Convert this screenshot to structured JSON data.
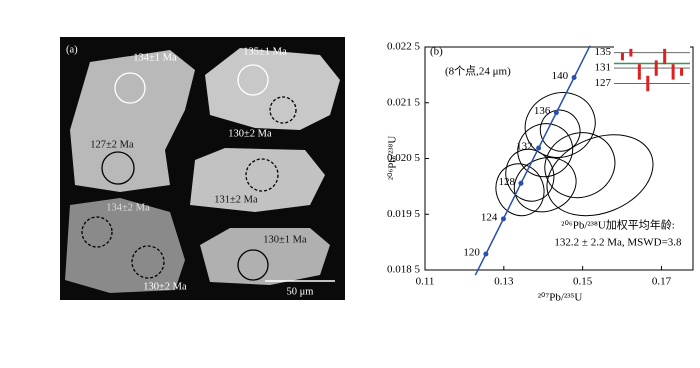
{
  "panel_a": {
    "label": "(a)",
    "ages": [
      "134±1 Ma",
      "135±1 Ma",
      "130±2 Ma",
      "127±2 Ma",
      "131±2 Ma",
      "134±2 Ma",
      "130±2 Ma",
      "130±1 Ma"
    ],
    "scale": "50 μm"
  },
  "chart_data": {
    "type": "concordia",
    "label": "(b)",
    "xlabel": "²⁰⁷Pb/²³⁵U",
    "ylabel": "²⁰⁶Pb/²³⁸U",
    "xlim": [
      0.11,
      0.178
    ],
    "ylim": [
      0.0185,
      0.0225
    ],
    "xticks": [
      0.11,
      0.13,
      0.15,
      0.17
    ],
    "yticks": [
      {
        "value": 0.0185,
        "label": "0.018 5"
      },
      {
        "value": 0.0195,
        "label": "0.019 5"
      },
      {
        "value": 0.0205,
        "label": "0.020 5"
      },
      {
        "value": 0.0215,
        "label": "0.021 5"
      },
      {
        "value": 0.0225,
        "label": "0.022 5"
      }
    ],
    "concordia": {
      "color": "#2b4fb0",
      "ages": [
        120,
        124,
        128,
        132,
        136,
        140
      ],
      "x": [
        0.12545,
        0.1299,
        0.13435,
        0.13883,
        0.14333,
        0.14783
      ],
      "y": [
        0.018787,
        0.019417,
        0.020055,
        0.020688,
        0.021323,
        0.021953
      ]
    },
    "ellipses": [
      {
        "x": 0.1443,
        "y": 0.0211,
        "sx": 0.009,
        "sy": 0.0005
      },
      {
        "x": 0.1405,
        "y": 0.02065,
        "sx": 0.007,
        "sy": 0.0004
      },
      {
        "x": 0.1493,
        "y": 0.02038,
        "sx": 0.009,
        "sy": 0.0005
      },
      {
        "x": 0.1544,
        "y": 0.0202,
        "sx": 0.014,
        "sy": 0.0006
      },
      {
        "x": 0.1366,
        "y": 0.0202,
        "sx": 0.006,
        "sy": 0.0004
      },
      {
        "x": 0.1405,
        "y": 0.02003,
        "sx": 0.008,
        "sy": 0.0004
      },
      {
        "x": 0.1443,
        "y": 0.021,
        "sx": 0.005,
        "sy": 0.0003
      },
      {
        "x": 0.1341,
        "y": 0.01994,
        "sx": 0.006,
        "sy": 0.0004
      }
    ],
    "annotation": "(8个点,24 μm)",
    "mean_title": "²⁰⁶Pb/²³⁸U加权平均年龄:",
    "mean_text": "132.2 ± 2.2 Ma, MSWD=3.8",
    "inset": {
      "ylim": [
        124,
        137
      ],
      "yticks": [
        127,
        131,
        135
      ],
      "mean": 132.2,
      "mean_color": "#2e9e4a",
      "bar_color": "#e02020",
      "values": [
        134,
        135,
        130,
        127,
        131,
        134,
        130,
        130
      ],
      "errors": [
        1,
        1,
        2,
        2,
        2,
        2,
        2,
        1
      ]
    }
  }
}
